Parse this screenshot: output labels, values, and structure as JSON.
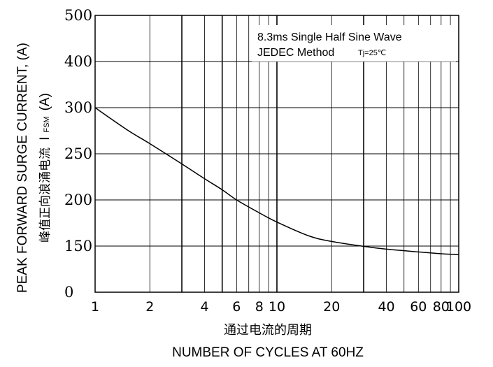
{
  "chart_data": {
    "type": "line",
    "x_scale": "log",
    "xlim": [
      1,
      100
    ],
    "xticks": [
      {
        "value": 1,
        "label": "1"
      },
      {
        "value": 2,
        "label": "2"
      },
      {
        "value": 4,
        "label": "4"
      },
      {
        "value": 6,
        "label": "6"
      },
      {
        "value": 8,
        "label": "8"
      },
      {
        "value": 10,
        "label": "10"
      },
      {
        "value": 20,
        "label": "20"
      },
      {
        "value": 40,
        "label": "40"
      },
      {
        "value": 60,
        "label": "60"
      },
      {
        "value": 80,
        "label": "80"
      },
      {
        "value": 100,
        "label": "100"
      }
    ],
    "x_gridlines": [
      2,
      3,
      4,
      5,
      6,
      7,
      8,
      9,
      10,
      20,
      30,
      40,
      50,
      60,
      70,
      80,
      90
    ],
    "yticks": [
      "0",
      "150",
      "200",
      "250",
      "300",
      "400",
      "500"
    ],
    "ylabel": "PEAK FORWARD SURGE CURRENT, (A)",
    "ylabel_cn": "峰值正向浪涌电流",
    "ylabel_symbol": "I",
    "ylabel_sub": "FSM",
    "ylabel_unit": "(A)",
    "xlabel": "NUMBER OF CYCLES AT 60HZ",
    "xlabel_cn": "通过电流的周期",
    "annotation_line1": "8.3ms Single Half Sine Wave",
    "annotation_line2": "JEDEC Method",
    "annotation_tj": "Tj=25℃",
    "grid": true,
    "series": [
      {
        "x": [
          1,
          1.5,
          2,
          3,
          4,
          5,
          6,
          8,
          10,
          15,
          20,
          30,
          40,
          60,
          80,
          100
        ],
        "y": [
          300,
          276,
          261,
          239,
          223,
          211,
          200,
          186,
          176,
          161,
          155,
          149,
          140,
          131,
          125,
          122
        ]
      }
    ]
  }
}
